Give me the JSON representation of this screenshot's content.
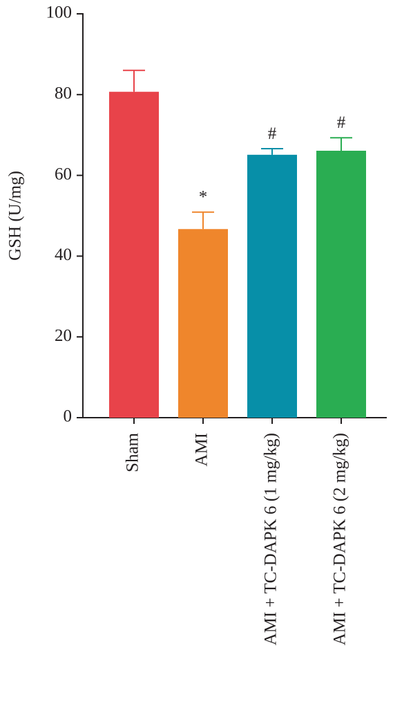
{
  "chart_data": {
    "type": "bar",
    "y_label": "GSH (U/mg)",
    "categories": [
      "Sham",
      "AMI",
      "AMI + TC-DAPK 6 (1 mg/kg)",
      "AMI + TC-DAPK 6 (2 mg/kg)"
    ],
    "values": [
      80.7,
      46.7,
      65.1,
      66.1
    ],
    "errors": [
      5.3,
      4.2,
      1.5,
      3.2
    ],
    "annotations": [
      null,
      "*",
      "#",
      "#"
    ],
    "colors": [
      "#e8434a",
      "#ef862c",
      "#078fa8",
      "#2aad52"
    ],
    "ylim": [
      0,
      100
    ],
    "yticks": [
      0,
      20,
      40,
      60,
      80,
      100
    ],
    "grid": false
  }
}
